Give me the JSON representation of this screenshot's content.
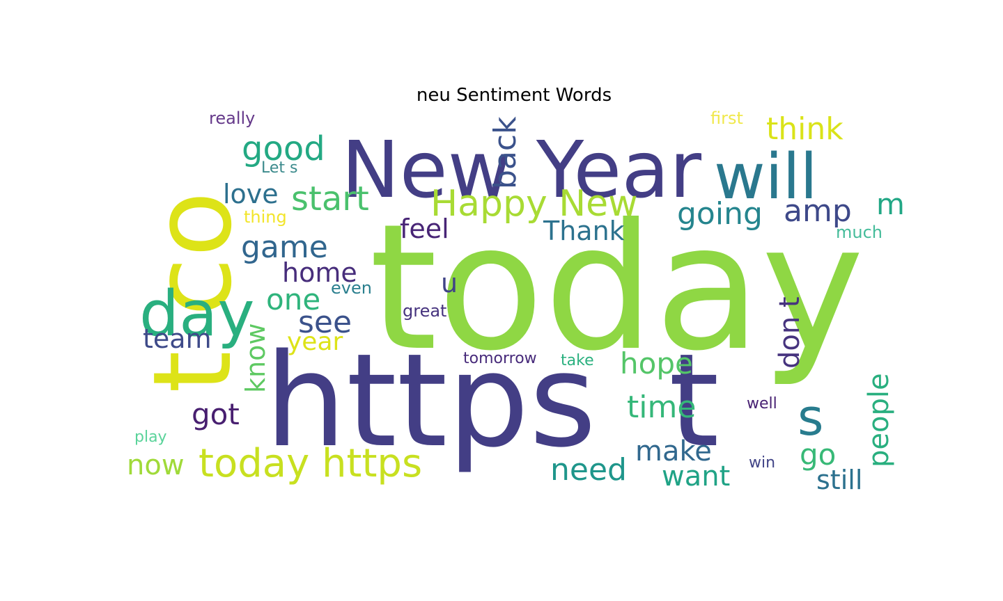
{
  "chart_data": {
    "type": "wordcloud",
    "title": "neu Sentiment Words",
    "background": "#ffffff",
    "palette": "viridis",
    "words": [
      {
        "text": "today",
        "color": "#8fd744"
      },
      {
        "text": "https",
        "color": "#433e85"
      },
      {
        "text": "t co",
        "color": "#dde318"
      },
      {
        "text": "New Year",
        "color": "#433e85"
      },
      {
        "text": "t",
        "color": "#433e85"
      },
      {
        "text": "will",
        "color": "#2a788e"
      },
      {
        "text": "day",
        "color": "#29af7f"
      },
      {
        "text": "today https",
        "color": "#c8e020"
      },
      {
        "text": "Happy New",
        "color": "#a8db34"
      },
      {
        "text": "s",
        "color": "#287c8e"
      },
      {
        "text": "good",
        "color": "#23a983"
      },
      {
        "text": "back",
        "color": "#3b528b"
      },
      {
        "text": "think",
        "color": "#dae319"
      },
      {
        "text": "start",
        "color": "#4ac16d"
      },
      {
        "text": "amp",
        "color": "#3e4989"
      },
      {
        "text": "m",
        "color": "#22a785"
      },
      {
        "text": "going",
        "color": "#25858e"
      },
      {
        "text": "love",
        "color": "#2d708e"
      },
      {
        "text": "feel",
        "color": "#482576"
      },
      {
        "text": "Thank",
        "color": "#2c728e"
      },
      {
        "text": "game",
        "color": "#31668e"
      },
      {
        "text": "home",
        "color": "#472d7b"
      },
      {
        "text": "one",
        "color": "#2fb47c"
      },
      {
        "text": "u",
        "color": "#414487"
      },
      {
        "text": "see",
        "color": "#3b528b"
      },
      {
        "text": "don t",
        "color": "#46337e"
      },
      {
        "text": "year",
        "color": "#dde318"
      },
      {
        "text": "team",
        "color": "#3e4a89"
      },
      {
        "text": "know",
        "color": "#5ec962"
      },
      {
        "text": "hope",
        "color": "#54c568"
      },
      {
        "text": "people",
        "color": "#29af7f"
      },
      {
        "text": "time",
        "color": "#35b779"
      },
      {
        "text": "got",
        "color": "#481f70"
      },
      {
        "text": "need",
        "color": "#1f968b"
      },
      {
        "text": "make",
        "color": "#31688e"
      },
      {
        "text": "go",
        "color": "#38b977"
      },
      {
        "text": "now",
        "color": "#a0da39"
      },
      {
        "text": "want",
        "color": "#20a386"
      },
      {
        "text": "still",
        "color": "#2c718e"
      },
      {
        "text": "really",
        "color": "#65398a"
      },
      {
        "text": "Let s",
        "color": "#3b8a8c"
      },
      {
        "text": "first",
        "color": "#f0e84b"
      },
      {
        "text": "thing",
        "color": "#f2e52b"
      },
      {
        "text": "much",
        "color": "#45bc9a"
      },
      {
        "text": "even",
        "color": "#2a7f8e"
      },
      {
        "text": "great",
        "color": "#46337e"
      },
      {
        "text": "tomorrow",
        "color": "#472a7a"
      },
      {
        "text": "take",
        "color": "#2bb07f"
      },
      {
        "text": "well",
        "color": "#482173"
      },
      {
        "text": "play",
        "color": "#5ad39a"
      },
      {
        "text": "win",
        "color": "#414487"
      }
    ]
  }
}
